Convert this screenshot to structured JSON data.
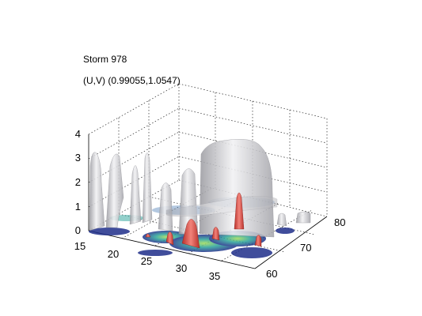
{
  "chart_data": {
    "type": "surface-3d",
    "title": "Storm 978",
    "subtitle": "(U,V) (0.99055,1.0547)",
    "xlabel": "",
    "ylabel": "",
    "zlabel": "",
    "xlim": [
      15,
      37
    ],
    "ylim": [
      58,
      82
    ],
    "zlim": [
      0,
      4
    ],
    "x_ticks": [
      "15",
      "20",
      "25",
      "30",
      "35"
    ],
    "y_ticks": [
      "60",
      "70",
      "80"
    ],
    "z_ticks": [
      "0",
      "1",
      "2",
      "3",
      "4"
    ],
    "grid": true,
    "colors": {
      "isosurface_outer": "#c8c8cc",
      "isosurface_inner": "#d9463c",
      "base_low": "#1f2e8a",
      "base_mid": "#2aa39a",
      "base_high": "#9fdc5a"
    },
    "series": [
      {
        "layer": "outer-isosurface",
        "peaks": [
          {
            "x": 15.5,
            "y": 80,
            "z": 3.2
          },
          {
            "x": 17.5,
            "y": 80,
            "z": 3.1
          },
          {
            "x": 22.5,
            "y": 78,
            "z": 2.5
          },
          {
            "x": 26.5,
            "y": 80,
            "z": 3.3
          },
          {
            "x": 29.0,
            "y": 72,
            "z": 1.9
          },
          {
            "x": 31.0,
            "y": 70,
            "z": 2.3
          },
          {
            "x": 35.0,
            "y": 76,
            "z": 3.8
          },
          {
            "x": 36.0,
            "y": 68,
            "z": 0.6
          }
        ]
      },
      {
        "layer": "inner-isosurface",
        "peaks": [
          {
            "x": 25.0,
            "y": 62,
            "z": 0.5
          },
          {
            "x": 28.0,
            "y": 62,
            "z": 0.6
          },
          {
            "x": 31.0,
            "y": 63,
            "z": 1.5
          },
          {
            "x": 33.0,
            "y": 64,
            "z": 0.5
          },
          {
            "x": 36.0,
            "y": 73,
            "z": 1.7
          }
        ]
      }
    ]
  }
}
